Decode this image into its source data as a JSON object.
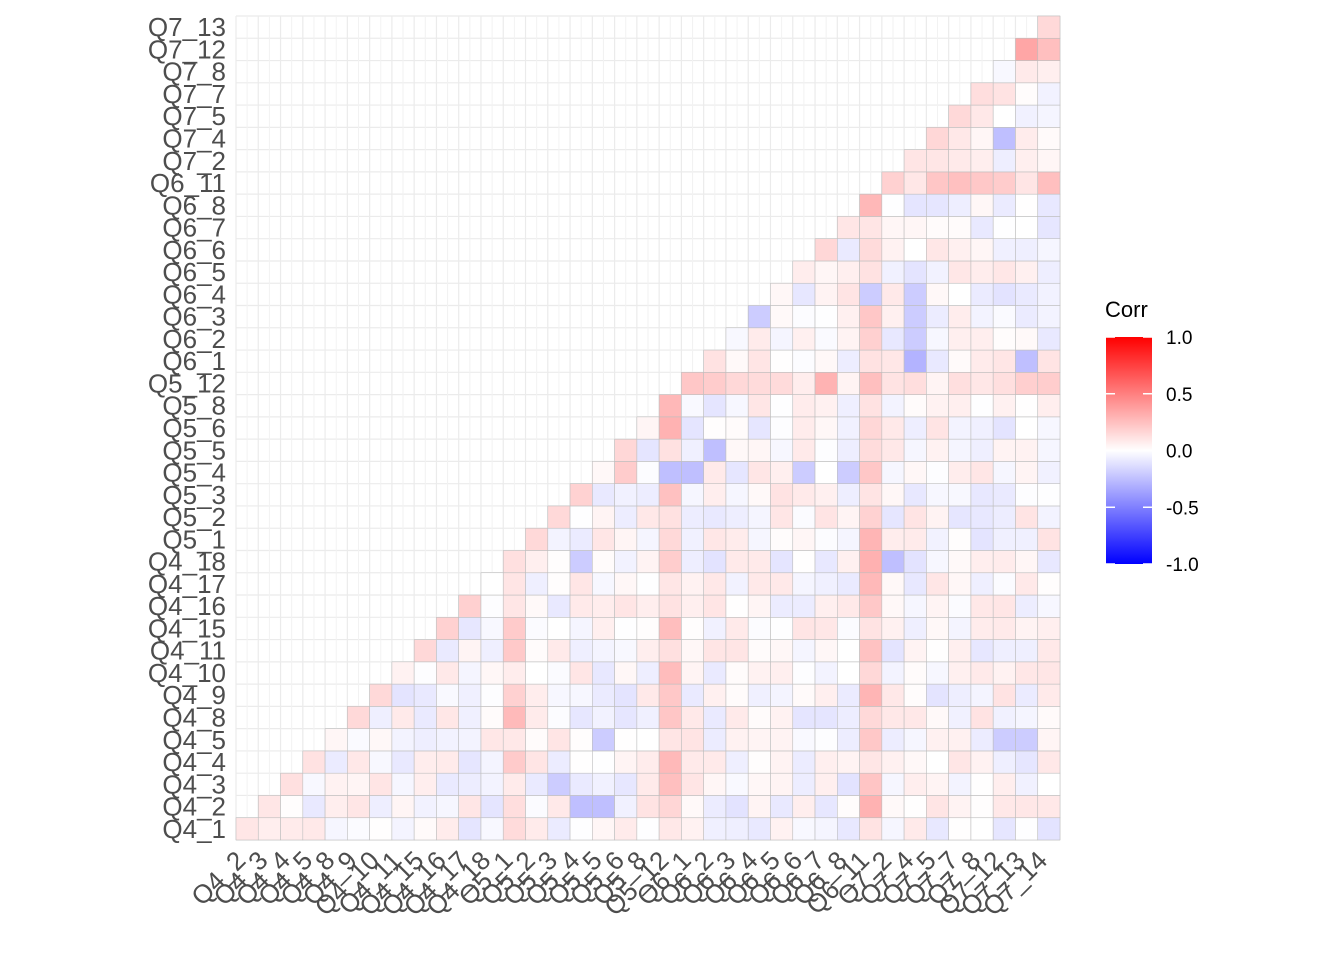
{
  "chart_data": {
    "type": "heatmap",
    "shape": "lower-triangle correlation matrix",
    "variables_x": [
      "Q4_2",
      "Q4_3",
      "Q4_4",
      "Q4_5",
      "Q4_8",
      "Q4_9",
      "Q4_10",
      "Q4_11",
      "Q4_15",
      "Q4_16",
      "Q4_17",
      "Q4_18",
      "Q5_1",
      "Q5_2",
      "Q5_3",
      "Q5_4",
      "Q5_5",
      "Q5_6",
      "Q5_8",
      "Q5_12",
      "Q6_1",
      "Q6_2",
      "Q6_3",
      "Q6_4",
      "Q6_5",
      "Q6_6",
      "Q6_7",
      "Q6_8",
      "Q6_11",
      "Q7_2",
      "Q7_4",
      "Q7_5",
      "Q7_7",
      "Q7_8",
      "Q7_12",
      "Q7_13",
      "Q7_14"
    ],
    "variables_y": [
      "Q4_1",
      "Q4_2",
      "Q4_3",
      "Q4_4",
      "Q4_5",
      "Q4_8",
      "Q4_9",
      "Q4_10",
      "Q4_11",
      "Q4_15",
      "Q4_16",
      "Q4_17",
      "Q4_18",
      "Q5_1",
      "Q5_2",
      "Q5_3",
      "Q5_4",
      "Q5_5",
      "Q5_6",
      "Q5_8",
      "Q5_12",
      "Q6_1",
      "Q6_2",
      "Q6_3",
      "Q6_4",
      "Q6_5",
      "Q6_6",
      "Q6_7",
      "Q6_8",
      "Q6_11",
      "Q7_2",
      "Q7_4",
      "Q7_5",
      "Q7_7",
      "Q7_8",
      "Q7_12",
      "Q7_13"
    ],
    "x_tick_labels": [
      "Q4_2",
      "Q4_3",
      "Q4_4",
      "Q4_5",
      "Q4_8",
      "Q4_9",
      "Q4_10",
      "Q4_11",
      "Q4_15",
      "Q4_16",
      "Q4_17",
      "Q4_18",
      "Q5_1",
      "Q5_2",
      "Q5_3",
      "Q5_4",
      "Q5_5",
      "Q5_6",
      "Q5_8",
      "Q5_12",
      "Q6_1",
      "Q6_2",
      "Q6_3",
      "Q6_4",
      "Q6_5",
      "Q6_6",
      "Q6_7",
      "Q6_8",
      "Q6_11",
      "Q7_2",
      "Q7_4",
      "Q7_5",
      "Q7_7",
      "Q7_8",
      "Q7_12",
      "Q7_13",
      "Q7_14"
    ],
    "y_tick_labels": [
      "Q4_1",
      "Q4_2",
      "Q4_3",
      "Q4_4",
      "Q4_5",
      "Q4_8",
      "Q4_9",
      "Q4_10",
      "Q4_11",
      "Q4_15",
      "Q4_16",
      "Q4_17",
      "Q4_18",
      "Q5_1",
      "Q5_2",
      "Q5_3",
      "Q5_4",
      "Q5_5",
      "Q5_6",
      "Q5_8",
      "Q5_12",
      "Q6_1",
      "Q6_2",
      "Q6_3",
      "Q6_4",
      "Q6_5",
      "Q6_6",
      "Q6_7",
      "Q6_8",
      "Q6_11",
      "Q7_2",
      "Q7_4",
      "Q7_5",
      "Q7_7",
      "Q7_8",
      "Q7_12",
      "Q7_13"
    ],
    "legend": {
      "title": "Corr",
      "placement": "right",
      "ticks": [
        "1.0",
        "0.5",
        "0.0",
        "-0.5",
        "-1.0"
      ],
      "range": [
        -1,
        1
      ]
    },
    "color_scale": {
      "low": "#0000FF",
      "mid": "#FFFFFF",
      "high": "#FF0000"
    },
    "grid": true,
    "background_grid_color": "#EBEBEB",
    "tile_border_color": "#BEBEBE",
    "highlight_columns": {
      "Q5_1": 0.18,
      "Q5_12": 0.22,
      "Q6_11": 0.22
    },
    "highlight_rows": {
      "Q5_12": 0.15,
      "Q6_11": 0.25,
      "Q7_12": 0.3
    },
    "notable_cells": [
      {
        "x": "Q4_2",
        "y": "Q4_1",
        "value": 0.1
      },
      {
        "x": "Q4_3",
        "y": "Q4_2",
        "value": 0.1
      },
      {
        "x": "Q4_4",
        "y": "Q4_3",
        "value": 0.12
      },
      {
        "x": "Q4_9",
        "y": "Q4_8",
        "value": 0.15
      },
      {
        "x": "Q4_10",
        "y": "Q4_9",
        "value": 0.15
      },
      {
        "x": "Q4_16",
        "y": "Q4_15",
        "value": 0.18
      },
      {
        "x": "Q5_1",
        "y": "Q4_18",
        "value": 0.12
      },
      {
        "x": "Q5_2",
        "y": "Q5_1",
        "value": 0.15
      },
      {
        "x": "Q5_3",
        "y": "Q5_2",
        "value": 0.15
      },
      {
        "x": "Q5_6",
        "y": "Q5_4",
        "value": 0.2
      },
      {
        "x": "Q5_12",
        "y": "Q5_1",
        "value": 0.15
      },
      {
        "x": "Q6_7",
        "y": "Q5_12",
        "value": 0.3
      },
      {
        "x": "Q6_11",
        "y": "Q5_12",
        "value": 0.25
      },
      {
        "x": "Q7_12",
        "y": "Q6_11",
        "value": 0.2
      },
      {
        "x": "Q7_14",
        "y": "Q6_11",
        "value": 0.25
      },
      {
        "x": "Q7_13",
        "y": "Q7_12",
        "value": 0.35
      },
      {
        "x": "Q7_14",
        "y": "Q7_12",
        "value": 0.25
      },
      {
        "x": "Q7_14",
        "y": "Q7_13",
        "value": 0.15
      },
      {
        "x": "Q5_4",
        "y": "Q4_2",
        "value": -0.25
      },
      {
        "x": "Q5_5",
        "y": "Q4_2",
        "value": -0.25
      },
      {
        "x": "Q5_3",
        "y": "Q4_3",
        "value": -0.2
      },
      {
        "x": "Q5_5",
        "y": "Q4_5",
        "value": -0.2
      },
      {
        "x": "Q5_4",
        "y": "Q4_18",
        "value": -0.2
      },
      {
        "x": "Q5_12",
        "y": "Q5_4",
        "value": -0.25
      },
      {
        "x": "Q6_1",
        "y": "Q5_4",
        "value": -0.25
      },
      {
        "x": "Q6_2",
        "y": "Q5_5",
        "value": -0.25
      },
      {
        "x": "Q6_6",
        "y": "Q5_4",
        "value": -0.2
      },
      {
        "x": "Q6_8",
        "y": "Q5_4",
        "value": -0.2
      },
      {
        "x": "Q7_2",
        "y": "Q4_18",
        "value": -0.25
      },
      {
        "x": "Q6_11",
        "y": "Q6_4",
        "value": -0.2
      },
      {
        "x": "Q6_4",
        "y": "Q6_3",
        "value": -0.2
      },
      {
        "x": "Q7_4",
        "y": "Q6_1",
        "value": -0.3
      },
      {
        "x": "Q7_4",
        "y": "Q6_2",
        "value": -0.2
      },
      {
        "x": "Q7_4",
        "y": "Q6_3",
        "value": -0.2
      },
      {
        "x": "Q7_4",
        "y": "Q6_4",
        "value": -0.2
      },
      {
        "x": "Q7_12",
        "y": "Q7_4",
        "value": -0.25
      },
      {
        "x": "Q7_13",
        "y": "Q6_1",
        "value": -0.25
      },
      {
        "x": "Q7_12",
        "y": "Q4_5",
        "value": -0.2
      },
      {
        "x": "Q7_13",
        "y": "Q4_5",
        "value": -0.2
      }
    ]
  }
}
